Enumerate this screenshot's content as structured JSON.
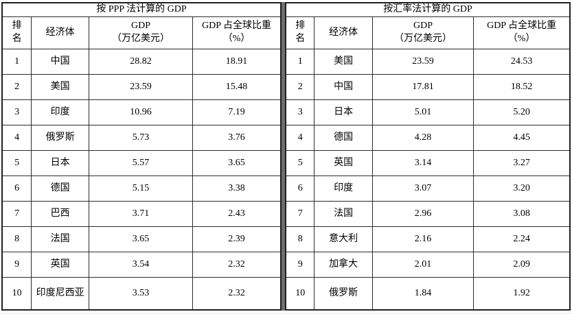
{
  "page": {
    "background": "#ffffff",
    "border_color": "#1f1f1f",
    "inner_line_color": "#2b2b2b",
    "divider_color": "#6e6e6e",
    "text_color": "#000000"
  },
  "tables": [
    {
      "title": "按 PPP 法计算的 GDP",
      "columns": {
        "rank": "排名",
        "economy": "经济体",
        "gdp_line1": "GDP",
        "gdp_line2": "（万亿美元）",
        "share_line1": "GDP 占全球比重",
        "share_line2": "（%）"
      },
      "rows": [
        [
          "1",
          "中国",
          "28.82",
          "18.91"
        ],
        [
          "2",
          "美国",
          "23.59",
          "15.48"
        ],
        [
          "3",
          "印度",
          "10.96",
          "7.19"
        ],
        [
          "4",
          "俄罗斯",
          "5.73",
          "3.76"
        ],
        [
          "5",
          "日本",
          "5.57",
          "3.65"
        ],
        [
          "6",
          "德国",
          "5.15",
          "3.38"
        ],
        [
          "7",
          "巴西",
          "3.71",
          "2.43"
        ],
        [
          "8",
          "法国",
          "3.65",
          "2.39"
        ],
        [
          "9",
          "英国",
          "3.54",
          "2.32"
        ],
        [
          "10",
          "印度尼西亚",
          "3.53",
          "2.32"
        ]
      ]
    },
    {
      "title": "按汇率法计算的 GDP",
      "columns": {
        "rank": "排名",
        "economy": "经济体",
        "gdp_line1": "GDP",
        "gdp_line2": "（万亿美元）",
        "share_line1": "GDP 占全球比重",
        "share_line2": "（%）"
      },
      "rows": [
        [
          "1",
          "美国",
          "23.59",
          "24.53"
        ],
        [
          "2",
          "中国",
          "17.81",
          "18.52"
        ],
        [
          "3",
          "日本",
          "5.01",
          "5.20"
        ],
        [
          "4",
          "德国",
          "4.28",
          "4.45"
        ],
        [
          "5",
          "英国",
          "3.14",
          "3.27"
        ],
        [
          "6",
          "印度",
          "3.07",
          "3.20"
        ],
        [
          "7",
          "法国",
          "2.96",
          "3.08"
        ],
        [
          "8",
          "意大利",
          "2.16",
          "2.24"
        ],
        [
          "9",
          "加拿大",
          "2.01",
          "2.09"
        ],
        [
          "10",
          "俄罗斯",
          "1.84",
          "1.92"
        ]
      ]
    }
  ]
}
